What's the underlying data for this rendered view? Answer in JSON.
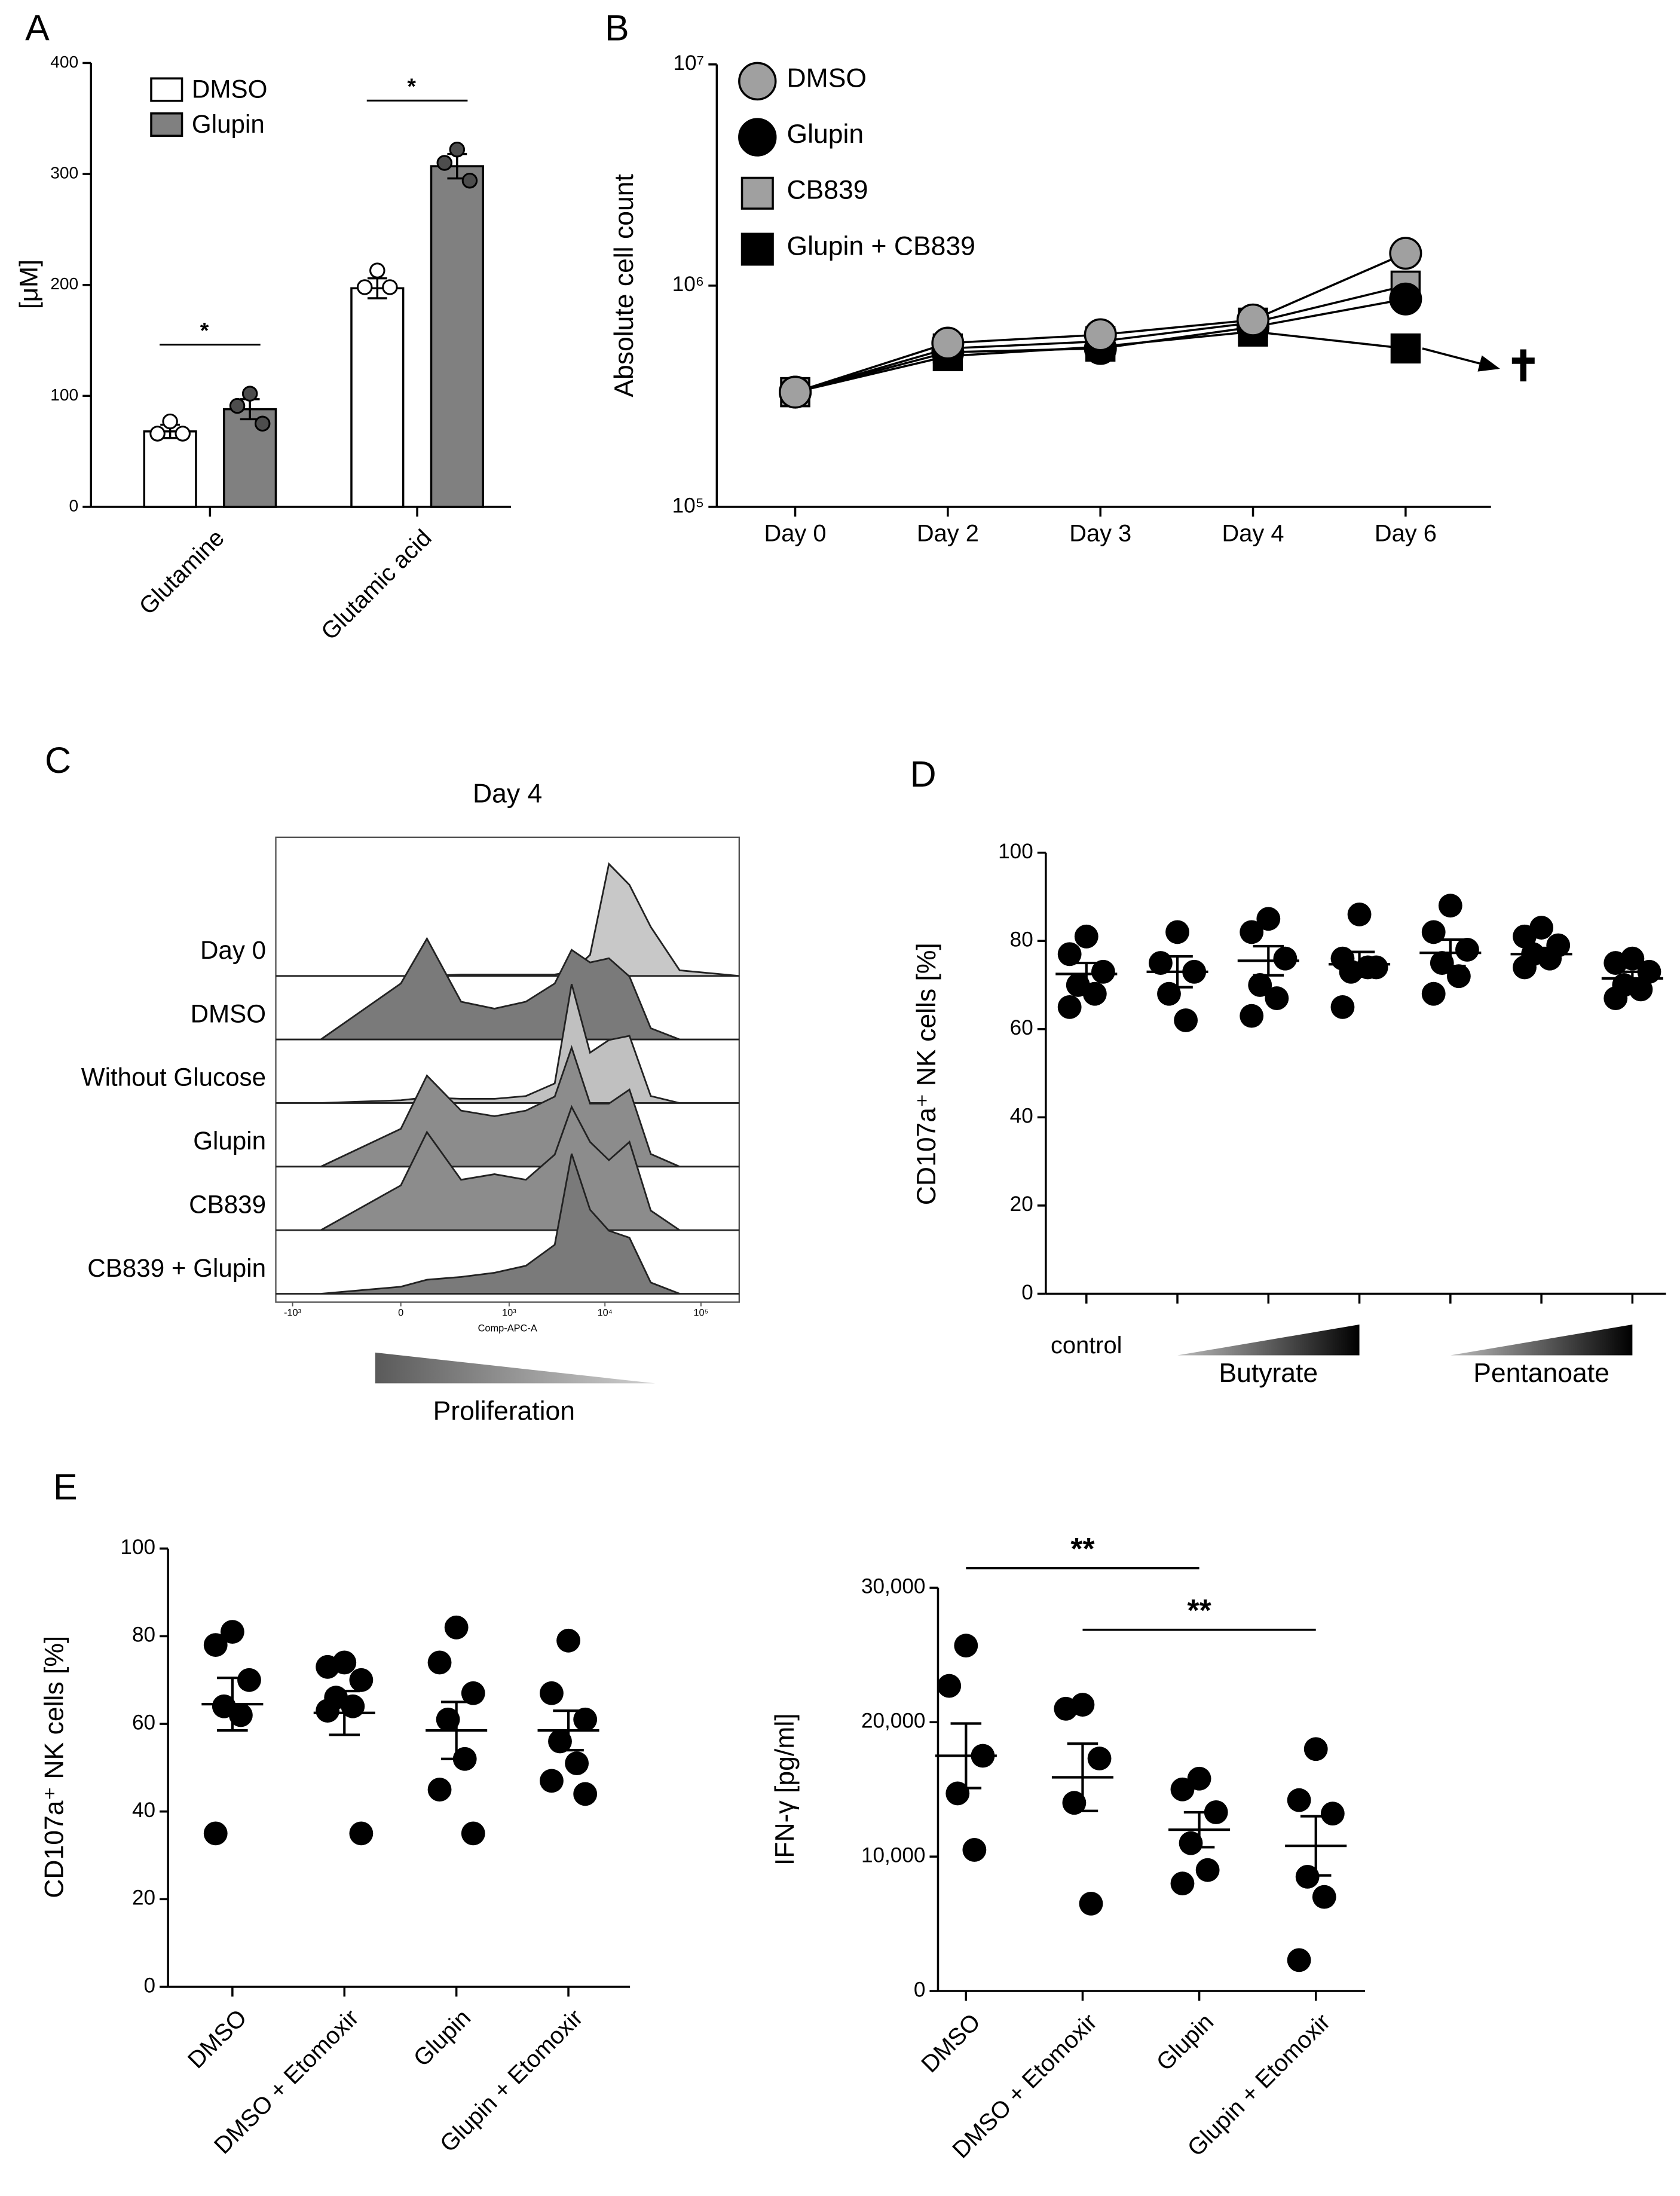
{
  "chart_data": [
    {
      "panel": "A",
      "type": "bar",
      "ylabel": "[μM]",
      "categories": [
        "Glutamine",
        "Glutamic acid"
      ],
      "series": [
        {
          "name": "DMSO",
          "color": "#ffffff",
          "point_color": "#ffffff",
          "values": [
            68,
            197
          ],
          "errors": [
            6,
            9
          ],
          "points": [
            [
              77,
              66,
              66
            ],
            [
              213,
              198,
              198
            ]
          ]
        },
        {
          "name": "Glupin",
          "color": "#808080",
          "point_color": "#4d4d4d",
          "values": [
            88,
            307
          ],
          "errors": [
            9,
            11
          ],
          "points": [
            [
              102,
              91,
              75
            ],
            [
              322,
              310,
              294
            ]
          ]
        }
      ],
      "ylim": [
        0,
        400
      ],
      "yticks": [
        0,
        100,
        200,
        300,
        400
      ],
      "significance": [
        {
          "category": 0,
          "label": "*"
        },
        {
          "category": 1,
          "label": "*"
        }
      ]
    },
    {
      "panel": "B",
      "type": "line",
      "ylabel": "Absolute cell count",
      "categories": [
        "Day 0",
        "Day 2",
        "Day 3",
        "Day 4",
        "Day 6"
      ],
      "log_scale": true,
      "ylim": [
        100000,
        10000000
      ],
      "yticks": [
        {
          "value": 100000,
          "label": "10⁵"
        },
        {
          "value": 1000000,
          "label": "10⁶"
        },
        {
          "value": 10000000,
          "label": "10⁷"
        }
      ],
      "series": [
        {
          "name": "DMSO",
          "color": "#a0a0a0",
          "marker": "circle",
          "values": [
            330000,
            550000,
            600000,
            700000,
            1400000
          ]
        },
        {
          "name": "Glupin",
          "color": "#000000",
          "marker": "circle",
          "values": [
            330000,
            500000,
            520000,
            650000,
            870000
          ]
        },
        {
          "name": "CB839",
          "color": "#a0a0a0",
          "marker": "square",
          "values": [
            330000,
            520000,
            560000,
            680000,
            1000000
          ]
        },
        {
          "name": "Glupin + CB839",
          "color": "#000000",
          "marker": "square",
          "values": [
            330000,
            480000,
            530000,
            620000,
            520000
          ]
        }
      ],
      "annotation": "✝"
    },
    {
      "panel": "C",
      "type": "density",
      "title": "Day 4",
      "xlabel": "Comp-APC-A",
      "footer": "Proliferation",
      "xlim": [
        -1500,
        250000
      ],
      "xticks": [
        {
          "value": -1000,
          "label": "-10³"
        },
        0,
        {
          "value": 1000,
          "label": "10³"
        },
        {
          "value": 10000,
          "label": "10⁴"
        },
        {
          "value": 100000,
          "label": "10⁵"
        }
      ],
      "x": [
        -1500,
        -500,
        0,
        100,
        300,
        700,
        1500,
        3000,
        4500,
        7000,
        11000,
        18000,
        30000,
        60000,
        250000
      ],
      "series": [
        {
          "name": "Day 0",
          "color": "#c8c8c8",
          "values": [
            0,
            0,
            0,
            0,
            1,
            1,
            1,
            1,
            3,
            15,
            80,
            65,
            35,
            4,
            0
          ]
        },
        {
          "name": "DMSO",
          "color": "#7a7a7a",
          "values": [
            0,
            0,
            40,
            72,
            27,
            22,
            27,
            40,
            64,
            55,
            58,
            45,
            8,
            0,
            0
          ]
        },
        {
          "name": "Without Glucose",
          "color": "#c0c0c0",
          "values": [
            0,
            0,
            2,
            4,
            3,
            3,
            5,
            14,
            85,
            36,
            45,
            48,
            5,
            0,
            0
          ]
        },
        {
          "name": "Glupin",
          "color": "#8c8c8c",
          "values": [
            0,
            0,
            27,
            65,
            40,
            36,
            40,
            50,
            85,
            45,
            45,
            55,
            9,
            0,
            0
          ]
        },
        {
          "name": "CB839",
          "color": "#8c8c8c",
          "values": [
            0,
            0,
            32,
            70,
            36,
            40,
            36,
            54,
            88,
            63,
            50,
            63,
            14,
            0,
            0
          ]
        },
        {
          "name": "CB839 + Glupin",
          "color": "#7a7a7a",
          "values": [
            0,
            0,
            5,
            10,
            12,
            15,
            20,
            35,
            100,
            60,
            45,
            40,
            8,
            0,
            0
          ]
        }
      ]
    },
    {
      "panel": "D",
      "type": "dot",
      "ylabel": "CD107a⁺ NK cells [%]",
      "categories": [
        "control",
        null,
        null,
        null,
        null,
        null,
        null
      ],
      "groups": [
        {
          "label": "Butyrate",
          "from": 1,
          "to": 3
        },
        {
          "label": "Pentanoate",
          "from": 4,
          "to": 6
        }
      ],
      "ylim": [
        0,
        100
      ],
      "yticks": [
        0,
        20,
        40,
        60,
        80,
        100
      ],
      "color": "#000000",
      "points": [
        [
          81,
          77,
          73,
          70,
          68,
          65
        ],
        [
          82,
          75,
          73,
          68,
          62
        ],
        [
          85,
          82,
          76,
          70,
          67,
          63
        ],
        [
          86,
          76,
          74,
          73,
          74,
          65
        ],
        [
          88,
          82,
          78,
          75,
          72,
          68
        ],
        [
          83,
          81,
          79,
          77,
          76,
          74
        ],
        [
          76,
          75,
          73,
          70,
          69,
          67
        ]
      ],
      "mean": [
        72.5,
        73,
        75.5,
        74.7,
        77.3,
        77,
        71.5
      ],
      "sem": [
        2.5,
        3.5,
        3.3,
        2.8,
        3,
        1.4,
        1.5
      ]
    },
    {
      "panel": "E",
      "type": "dot",
      "ylabel": "CD107a⁺ NK cells [%]",
      "categories": [
        "DMSO",
        "DMSO + Etomoxir",
        "Glupin",
        "Glupin + Etomoxir"
      ],
      "ylim": [
        0,
        100
      ],
      "yticks": [
        0,
        20,
        40,
        60,
        80,
        100
      ],
      "color": "#000000",
      "points": [
        [
          81,
          78,
          70,
          64,
          62,
          35
        ],
        [
          74,
          73,
          70,
          66,
          64,
          63,
          35
        ],
        [
          82,
          74,
          67,
          61,
          52,
          45,
          35
        ],
        [
          79,
          67,
          61,
          56,
          51,
          47,
          44
        ]
      ],
      "mean": [
        64.5,
        62.5,
        58.5,
        58.5
      ],
      "sem": [
        6,
        5,
        6.5,
        4.5
      ]
    },
    {
      "type": "dot",
      "ylabel": "IFN-γ [pg/ml]",
      "categories": [
        "DMSO",
        "DMSO + Etomoxir",
        "Glupin",
        "Glupin + Etomoxir"
      ],
      "ylim": [
        0,
        30000
      ],
      "yticks": [
        0,
        {
          "value": 10000,
          "label": "10,000"
        },
        {
          "value": 20000,
          "label": "20,000"
        },
        {
          "value": 30000,
          "label": "30,000"
        }
      ],
      "color": "#000000",
      "points": [
        [
          25700,
          22700,
          17500,
          14700,
          10500
        ],
        [
          21300,
          21000,
          17300,
          14000,
          6500
        ],
        [
          15800,
          15000,
          13300,
          11000,
          9000,
          8000
        ],
        [
          18000,
          14200,
          13200,
          8500,
          7000,
          2300
        ]
      ],
      "mean": [
        17500,
        15900,
        12000,
        10800
      ],
      "sem": [
        2400,
        2500,
        1300,
        2200
      ],
      "significance": [
        {
          "from": 0,
          "to": 2,
          "label": "**"
        },
        {
          "from": 1,
          "to": 3,
          "label": "**"
        }
      ]
    }
  ]
}
